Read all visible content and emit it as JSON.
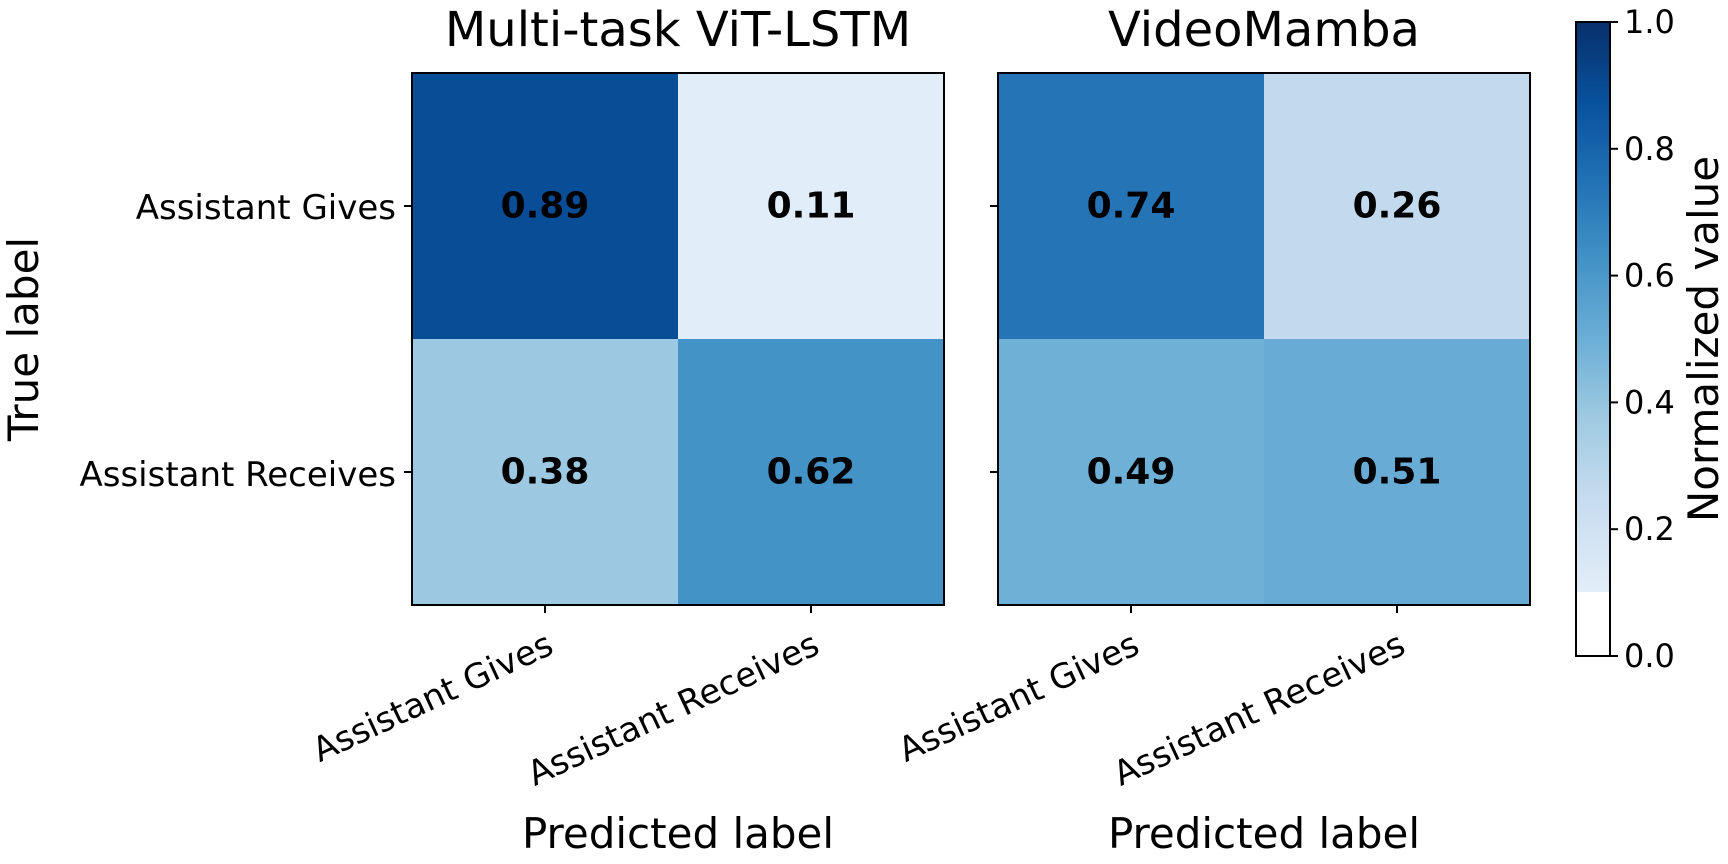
{
  "chart_data": {
    "type": "heatmap",
    "panels": [
      {
        "title": "Multi-task ViT-LSTM",
        "rows": [
          "Assistant Gives",
          "Assistant Receives"
        ],
        "columns": [
          "Assistant Gives",
          "Assistant Receives"
        ],
        "values": [
          [
            0.89,
            0.11
          ],
          [
            0.38,
            0.62
          ]
        ],
        "value_labels": [
          [
            "0.89",
            "0.11"
          ],
          [
            "0.38",
            "0.62"
          ]
        ],
        "xlabel": "Predicted label",
        "ylabel": "True label"
      },
      {
        "title": "VideoMamba",
        "rows": [
          "Assistant Gives",
          "Assistant Receives"
        ],
        "columns": [
          "Assistant Gives",
          "Assistant Receives"
        ],
        "values": [
          [
            0.74,
            0.26
          ],
          [
            0.49,
            0.51
          ]
        ],
        "value_labels": [
          [
            "0.74",
            "0.26"
          ],
          [
            "0.49",
            "0.51"
          ]
        ],
        "xlabel": "Predicted label",
        "ylabel": ""
      }
    ],
    "colorbar": {
      "label": "Normalized value",
      "range": [
        0,
        1
      ],
      "ticks": [
        0.0,
        0.2,
        0.4,
        0.6,
        0.8,
        1.0
      ],
      "tick_labels": [
        "0.0",
        "0.2",
        "0.4",
        "0.6",
        "0.8",
        "1.0"
      ],
      "colormap": "Blues"
    }
  }
}
